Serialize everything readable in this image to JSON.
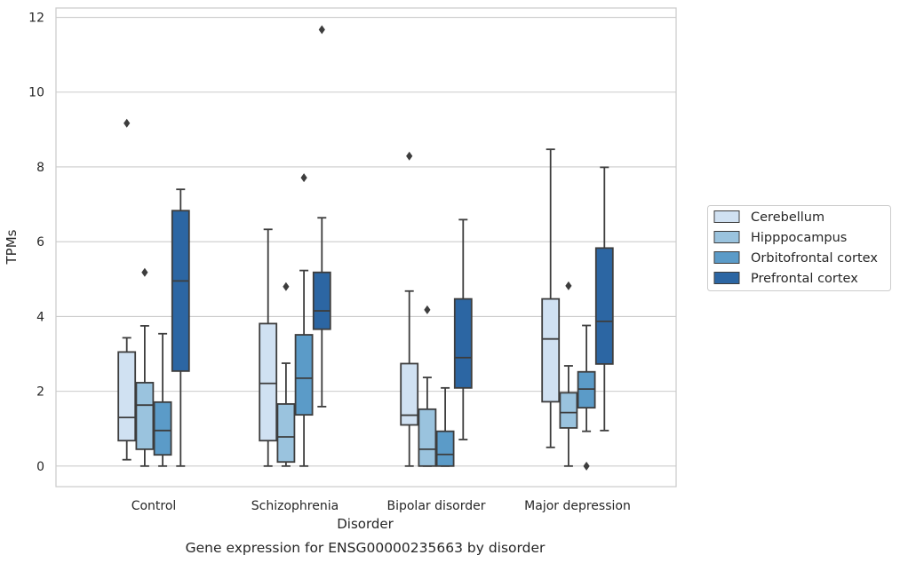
{
  "chart_data": {
    "type": "box",
    "title": "Gene expression for ENSG00000235663 by disorder",
    "xlabel": "Disorder",
    "ylabel": "TPMs",
    "ylim": [
      -0.55,
      12.25
    ],
    "yticks": [
      0,
      2,
      4,
      6,
      8,
      10,
      12
    ],
    "grid": true,
    "legend_position": "right",
    "categories": [
      "Control",
      "Schizophrenia",
      "Bipolar disorder",
      "Major depression"
    ],
    "series": [
      {
        "name": "Cerebellum",
        "color": "#d0e1f2",
        "boxes": [
          {
            "whisker_low": 0.17,
            "q1": 0.68,
            "median": 1.3,
            "q3": 3.05,
            "whisker_high": 3.43,
            "outliers": [
              9.17
            ]
          },
          {
            "whisker_low": 0.0,
            "q1": 0.68,
            "median": 2.21,
            "q3": 3.81,
            "whisker_high": 6.33,
            "outliers": []
          },
          {
            "whisker_low": 0.0,
            "q1": 1.1,
            "median": 1.36,
            "q3": 2.74,
            "whisker_high": 4.68,
            "outliers": [
              8.29
            ]
          },
          {
            "whisker_low": 0.5,
            "q1": 1.72,
            "median": 3.4,
            "q3": 4.47,
            "whisker_high": 8.47,
            "outliers": []
          }
        ]
      },
      {
        "name": "Hipppocampus",
        "color": "#9ac3de",
        "boxes": [
          {
            "whisker_low": 0.0,
            "q1": 0.45,
            "median": 1.63,
            "q3": 2.23,
            "whisker_high": 3.75,
            "outliers": [
              5.18
            ]
          },
          {
            "whisker_low": 0.0,
            "q1": 0.11,
            "median": 0.78,
            "q3": 1.66,
            "whisker_high": 2.75,
            "outliers": [
              4.8
            ]
          },
          {
            "whisker_low": 0.0,
            "q1": 0.0,
            "median": 0.45,
            "q3": 1.52,
            "whisker_high": 2.37,
            "outliers": [
              4.18
            ]
          },
          {
            "whisker_low": 0.0,
            "q1": 1.02,
            "median": 1.43,
            "q3": 1.96,
            "whisker_high": 2.68,
            "outliers": [
              4.82
            ]
          }
        ]
      },
      {
        "name": "Orbitofrontal cortex",
        "color": "#5b9bc8",
        "boxes": [
          {
            "whisker_low": 0.0,
            "q1": 0.3,
            "median": 0.95,
            "q3": 1.71,
            "whisker_high": 3.54,
            "outliers": []
          },
          {
            "whisker_low": 0.0,
            "q1": 1.37,
            "median": 2.35,
            "q3": 3.51,
            "whisker_high": 5.23,
            "outliers": [
              7.71
            ]
          },
          {
            "whisker_low": 0.0,
            "q1": 0.0,
            "median": 0.31,
            "q3": 0.93,
            "whisker_high": 2.09,
            "outliers": []
          },
          {
            "whisker_low": 0.93,
            "q1": 1.56,
            "median": 2.06,
            "q3": 2.52,
            "whisker_high": 3.76,
            "outliers": [
              0.0
            ]
          }
        ]
      },
      {
        "name": "Prefrontal cortex",
        "color": "#2c66a3",
        "boxes": [
          {
            "whisker_low": 0.0,
            "q1": 2.54,
            "median": 4.95,
            "q3": 6.83,
            "whisker_high": 7.4,
            "outliers": []
          },
          {
            "whisker_low": 1.59,
            "q1": 3.66,
            "median": 4.15,
            "q3": 5.18,
            "whisker_high": 6.64,
            "outliers": [
              11.67
            ]
          },
          {
            "whisker_low": 0.71,
            "q1": 2.09,
            "median": 2.9,
            "q3": 4.47,
            "whisker_high": 6.59,
            "outliers": []
          },
          {
            "whisker_low": 0.95,
            "q1": 2.73,
            "median": 3.87,
            "q3": 5.83,
            "whisker_high": 7.99,
            "outliers": []
          }
        ]
      }
    ]
  }
}
